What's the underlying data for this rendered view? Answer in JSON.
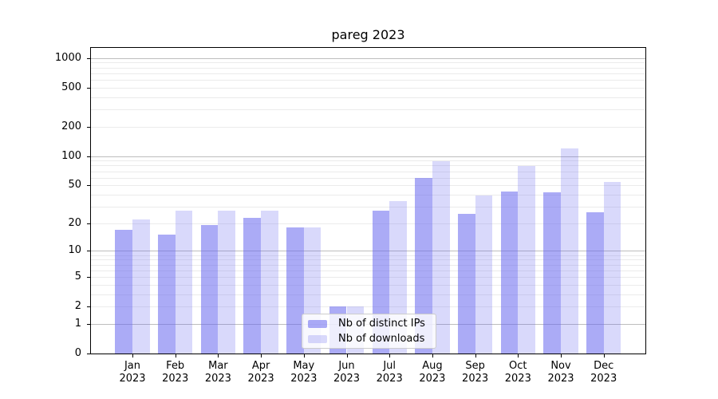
{
  "chart_data": {
    "type": "bar",
    "title": "pareg 2023",
    "categories": [
      "Jan 2023",
      "Feb 2023",
      "Mar 2023",
      "Apr 2023",
      "May 2023",
      "Jun 2023",
      "Jul 2023",
      "Aug 2023",
      "Sep 2023",
      "Oct 2023",
      "Nov 2023",
      "Dec 2023"
    ],
    "series": [
      {
        "name": "Nb of distinct IPs",
        "color": "rgba(102,102,238,0.55)",
        "values": [
          17,
          15,
          19,
          23,
          18,
          2,
          27,
          60,
          25,
          43,
          42,
          26
        ]
      },
      {
        "name": "Nb of downloads",
        "color": "rgba(102,102,238,0.25)",
        "values": [
          22,
          27,
          27,
          27,
          18,
          2,
          34,
          88,
          39,
          79,
          121,
          54
        ]
      }
    ],
    "xlabel": "",
    "ylabel": "",
    "yscale": "log1p",
    "ylim": [
      0,
      1300
    ],
    "yticks": [
      0,
      1,
      2,
      5,
      10,
      20,
      50,
      100,
      200,
      500,
      1000
    ],
    "grid": {
      "on": true,
      "major_values": [
        1,
        10,
        100,
        1000
      ],
      "minor_mantissas": [
        2,
        3,
        4,
        5,
        6,
        7,
        8,
        9
      ],
      "minor_decades": [
        1,
        10,
        100
      ]
    },
    "legend": {
      "position": "lower center"
    }
  },
  "colors": {
    "bar_ips": "rgba(102,102,238,0.55)",
    "bar_downloads": "rgba(102,102,238,0.25)",
    "grid_major": "#bdbdbd",
    "grid_minor": "#ebebeb",
    "spine": "#000000",
    "legend_border": "#cccccc",
    "legend_background": "rgba(255,255,255,0.8)"
  }
}
